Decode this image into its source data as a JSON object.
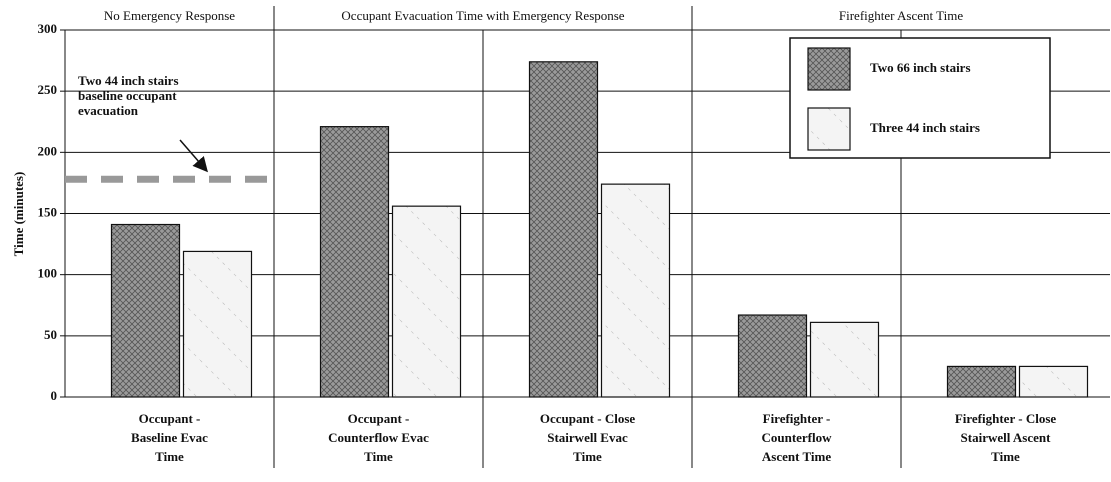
{
  "chart_data": {
    "type": "bar",
    "group_labels": [
      "No Emergency Response",
      "Occupant Evacuation Time with Emergency Response",
      "Firefighter Ascent Time"
    ],
    "categories": [
      [
        "Occupant -",
        "Baseline Evac",
        "Time"
      ],
      [
        "Occupant -",
        "Counterflow Evac",
        "Time"
      ],
      [
        "Occupant - Close",
        "Stairwell Evac",
        "Time"
      ],
      [
        "Firefighter -",
        "Counterflow",
        "Ascent Time"
      ],
      [
        "Firefighter - Close",
        "Stairwell Ascent",
        "Time"
      ]
    ],
    "series": [
      {
        "name": "Two 66 inch stairs",
        "color": "#8c8c8c",
        "values": [
          141,
          221,
          274,
          67,
          25
        ]
      },
      {
        "name": "Three 44 inch stairs",
        "color": "#f2f2f2",
        "values": [
          119,
          156,
          174,
          61,
          25
        ]
      }
    ],
    "y_label": "Time (minutes)",
    "ylim": [
      0,
      300
    ],
    "yticks": [
      0,
      50,
      100,
      150,
      200,
      250,
      300
    ],
    "grid": true,
    "reference_line": {
      "value": 178,
      "label": [
        "Two 44 inch stairs",
        "baseline occupant",
        "evacuation"
      ]
    },
    "legend": "upper right"
  }
}
